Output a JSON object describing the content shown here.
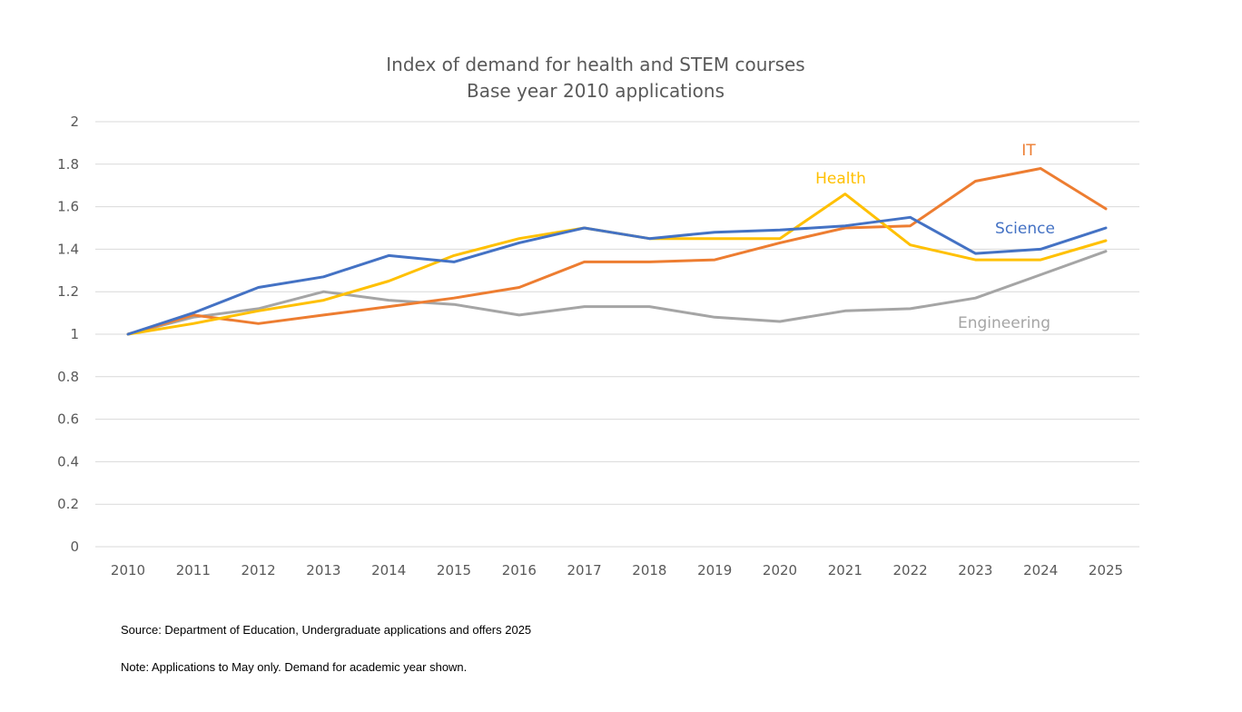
{
  "chart_data": {
    "type": "line",
    "title": "Index of demand for health and STEM courses",
    "subtitle": "Base year 2010 applications",
    "xlabel": "",
    "ylabel": "",
    "ylim": [
      0,
      2
    ],
    "y_ticks": [
      "0",
      "0.2",
      "0.4",
      "0.6",
      "0.8",
      "1",
      "1.2",
      "1.4",
      "1.6",
      "1.8",
      "2"
    ],
    "y_tick_values": [
      0,
      0.2,
      0.4,
      0.6,
      0.8,
      1,
      1.2,
      1.4,
      1.6,
      1.8,
      2
    ],
    "grid": true,
    "legend": "none (series labelled directly on the plot)",
    "categories": [
      "2010",
      "2011",
      "2012",
      "2013",
      "2014",
      "2015",
      "2016",
      "2017",
      "2018",
      "2019",
      "2020",
      "2021",
      "2022",
      "2023",
      "2024",
      "2025"
    ],
    "series": [
      {
        "name": "Engineering",
        "color": "#a5a5a5",
        "values": [
          1.0,
          1.08,
          1.12,
          1.2,
          1.16,
          1.14,
          1.09,
          1.13,
          1.13,
          1.08,
          1.06,
          1.11,
          1.12,
          1.17,
          1.28,
          1.39
        ]
      },
      {
        "name": "IT",
        "color": "#ed7d31",
        "values": [
          1.0,
          1.09,
          1.05,
          1.09,
          1.13,
          1.17,
          1.22,
          1.34,
          1.34,
          1.35,
          1.43,
          1.5,
          1.51,
          1.72,
          1.78,
          1.59
        ]
      },
      {
        "name": "Health",
        "color": "#ffc000",
        "values": [
          1.0,
          1.05,
          1.11,
          1.16,
          1.25,
          1.37,
          1.45,
          1.5,
          1.45,
          1.45,
          1.45,
          1.66,
          1.42,
          1.35,
          1.35,
          1.44
        ]
      },
      {
        "name": "Science",
        "color": "#4472c4",
        "values": [
          1.0,
          1.1,
          1.22,
          1.27,
          1.37,
          1.34,
          1.43,
          1.5,
          1.45,
          1.48,
          1.49,
          1.51,
          1.55,
          1.38,
          1.4,
          1.5
        ]
      }
    ],
    "series_label_order": [
      "IT",
      "Health",
      "Science",
      "Engineering"
    ],
    "notes": [
      "Source: Department of Education, Undergraduate applications and offers 2025",
      "Note: Applications to May only.  Demand for academic year shown."
    ]
  },
  "colors": {
    "axis_text": "#595959",
    "gridline": "#d9d9d9",
    "background": "#ffffff"
  }
}
